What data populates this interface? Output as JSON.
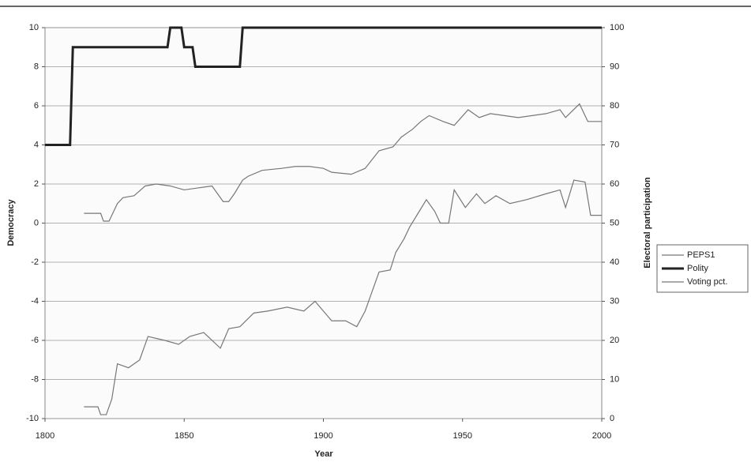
{
  "chart_data": {
    "type": "line",
    "x_label": "Year",
    "y_label": "Democracy",
    "y2_label": "Electoral participation",
    "xlim": [
      1800,
      2000
    ],
    "xticks": [
      1800,
      1850,
      1900,
      1950,
      2000
    ],
    "ylim": [
      -10,
      10
    ],
    "yticks": [
      -10,
      -8,
      -6,
      -4,
      -2,
      0,
      2,
      4,
      6,
      8,
      10
    ],
    "y2lim": [
      0,
      100
    ],
    "y2ticks": [
      0,
      10,
      20,
      30,
      40,
      50,
      60,
      70,
      80,
      90,
      100
    ],
    "grid": true,
    "legend": "right",
    "series": [
      {
        "name": "PEPS1",
        "color": "#777777",
        "x": [
          1814,
          1819,
          1820,
          1822,
          1824,
          1826,
          1830,
          1834,
          1837,
          1843,
          1848,
          1852,
          1857,
          1863,
          1866,
          1870,
          1875,
          1880,
          1887,
          1893,
          1897,
          1900,
          1903,
          1908,
          1912,
          1915,
          1920,
          1924,
          1926,
          1929,
          1931,
          1934,
          1937,
          1940,
          1942,
          1945,
          1947,
          1951,
          1955,
          1958,
          1962,
          1967,
          1973,
          1980,
          1985,
          1987,
          1990,
          1994,
          1996,
          2000
        ],
        "values": [
          -9.4,
          -9.4,
          -9.8,
          -9.8,
          -9,
          -7.2,
          -7.4,
          -7,
          -5.8,
          -6,
          -6.2,
          -5.8,
          -5.6,
          -6.4,
          -5.4,
          -5.3,
          -4.6,
          -4.5,
          -4.3,
          -4.5,
          -4,
          -4.5,
          -5,
          -5,
          -5.3,
          -4.5,
          -2.5,
          -2.4,
          -1.5,
          -0.8,
          -0.2,
          0.5,
          1.2,
          0.6,
          0,
          0,
          1.7,
          0.8,
          1.5,
          1,
          1.4,
          1,
          1.2,
          1.5,
          1.7,
          0.8,
          2.2,
          2.1,
          0.4,
          0.4
        ]
      },
      {
        "name": "Polity",
        "color": "#222222",
        "x": [
          1800,
          1809,
          1810,
          1844,
          1845,
          1849,
          1850,
          1853,
          1854,
          1870,
          1871,
          2000
        ],
        "values": [
          4,
          4,
          9,
          9,
          10,
          10,
          9,
          9,
          8,
          8,
          10,
          10
        ]
      },
      {
        "name": "Voting pct.",
        "color": "#777777",
        "axis": "y2",
        "x": [
          1814,
          1820,
          1821,
          1823,
          1824,
          1826,
          1828,
          1832,
          1836,
          1840,
          1845,
          1850,
          1855,
          1860,
          1864,
          1866,
          1868,
          1871,
          1873,
          1878,
          1885,
          1890,
          1895,
          1900,
          1903,
          1910,
          1915,
          1920,
          1925,
          1928,
          1932,
          1935,
          1938,
          1943,
          1947,
          1952,
          1956,
          1960,
          1965,
          1970,
          1975,
          1980,
          1985,
          1987,
          1992,
          1995,
          2000
        ],
        "values": [
          52.5,
          52.5,
          50.5,
          50.5,
          52,
          55,
          56.5,
          57,
          59.5,
          60,
          59.5,
          58.5,
          59,
          59.5,
          55.5,
          55.5,
          57.5,
          61,
          62,
          63.5,
          64,
          64.5,
          64.5,
          64,
          63,
          62.5,
          64,
          68.5,
          69.5,
          72,
          74,
          76,
          77.5,
          76,
          75,
          79,
          77,
          78,
          77.5,
          77,
          77.5,
          78,
          79,
          77,
          80.5,
          76,
          76
        ]
      }
    ]
  }
}
